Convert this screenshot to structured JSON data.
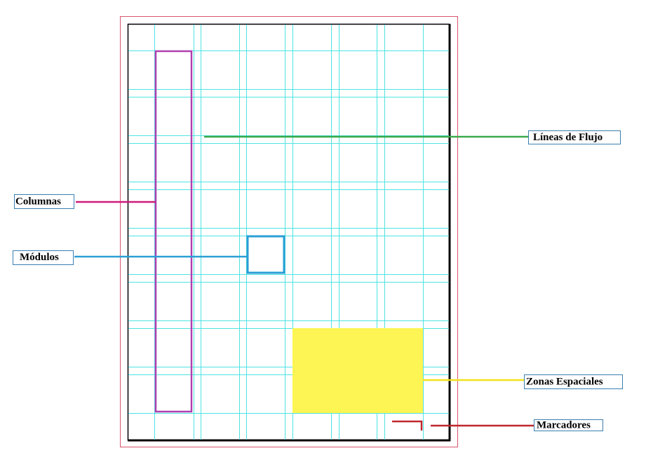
{
  "labels": {
    "flow_lines": "Líneas de Flujo",
    "columns": "Columnas",
    "modules": "Módulos",
    "spatial_zones": "Zonas Espaciales",
    "markers": "Marcadores"
  }
}
